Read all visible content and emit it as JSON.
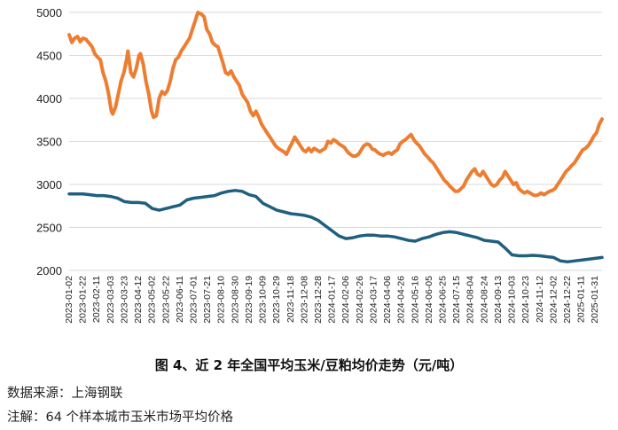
{
  "caption": "图 4、近 2 年全国平均玉米/豆粕均价走势（元/吨）",
  "source": "数据来源：上海钢联",
  "note": "注解：64 个样本城市玉米市场平均价格",
  "chart_data": {
    "type": "line",
    "title": "图 4、近 2 年全国平均玉米/豆粕均价走势（元/吨）",
    "ylim": [
      2000,
      5000
    ],
    "yticks": [
      2000,
      2500,
      3000,
      3500,
      4000,
      4500,
      5000
    ],
    "grid": true,
    "x_start": "2023-01-02",
    "x_end": "2025-02-10",
    "categories": [
      "2023-01-02",
      "2023-01-22",
      "2023-02-11",
      "2023-03-03",
      "2023-03-23",
      "2023-04-12",
      "2023-05-02",
      "2023-05-22",
      "2023-06-11",
      "2023-07-01",
      "2023-07-21",
      "2023-08-10",
      "2023-08-30",
      "2023-09-19",
      "2023-10-09",
      "2023-10-29",
      "2023-11-18",
      "2023-12-08",
      "2023-12-28",
      "2024-01-17",
      "2024-02-06",
      "2024-02-26",
      "2024-03-17",
      "2024-04-06",
      "2024-04-26",
      "2024-05-16",
      "2024-06-05",
      "2024-06-25",
      "2024-07-15",
      "2024-08-04",
      "2024-08-24",
      "2024-09-13",
      "2024-10-03",
      "2024-10-23",
      "2024-11-12",
      "2024-12-02",
      "2024-12-22",
      "2025-01-11",
      "2025-01-31"
    ],
    "series": [
      {
        "color": "#ed7d31",
        "points": [
          [
            "2023-01-02",
            4740
          ],
          [
            "2023-01-06",
            4650
          ],
          [
            "2023-01-10",
            4700
          ],
          [
            "2023-01-14",
            4720
          ],
          [
            "2023-01-18",
            4660
          ],
          [
            "2023-01-22",
            4700
          ],
          [
            "2023-01-26",
            4690
          ],
          [
            "2023-01-30",
            4650
          ],
          [
            "2023-02-04",
            4600
          ],
          [
            "2023-02-08",
            4520
          ],
          [
            "2023-02-12",
            4480
          ],
          [
            "2023-02-16",
            4450
          ],
          [
            "2023-02-20",
            4300
          ],
          [
            "2023-02-24",
            4200
          ],
          [
            "2023-02-28",
            4050
          ],
          [
            "2023-03-04",
            3850
          ],
          [
            "2023-03-06",
            3820
          ],
          [
            "2023-03-10",
            3900
          ],
          [
            "2023-03-14",
            4050
          ],
          [
            "2023-03-18",
            4200
          ],
          [
            "2023-03-22",
            4300
          ],
          [
            "2023-03-26",
            4450
          ],
          [
            "2023-03-28",
            4550
          ],
          [
            "2023-04-01",
            4300
          ],
          [
            "2023-04-05",
            4250
          ],
          [
            "2023-04-09",
            4350
          ],
          [
            "2023-04-13",
            4500
          ],
          [
            "2023-04-15",
            4520
          ],
          [
            "2023-04-19",
            4400
          ],
          [
            "2023-04-23",
            4200
          ],
          [
            "2023-04-27",
            4050
          ],
          [
            "2023-05-01",
            3850
          ],
          [
            "2023-05-04",
            3780
          ],
          [
            "2023-05-08",
            3800
          ],
          [
            "2023-05-12",
            4000
          ],
          [
            "2023-05-16",
            4080
          ],
          [
            "2023-05-20",
            4050
          ],
          [
            "2023-05-24",
            4090
          ],
          [
            "2023-05-28",
            4200
          ],
          [
            "2023-06-01",
            4350
          ],
          [
            "2023-06-05",
            4450
          ],
          [
            "2023-06-09",
            4480
          ],
          [
            "2023-06-13",
            4550
          ],
          [
            "2023-06-17",
            4600
          ],
          [
            "2023-06-21",
            4650
          ],
          [
            "2023-06-25",
            4700
          ],
          [
            "2023-06-29",
            4800
          ],
          [
            "2023-07-03",
            4900
          ],
          [
            "2023-07-07",
            5000
          ],
          [
            "2023-07-12",
            4980
          ],
          [
            "2023-07-16",
            4950
          ],
          [
            "2023-07-20",
            4800
          ],
          [
            "2023-07-24",
            4750
          ],
          [
            "2023-07-28",
            4650
          ],
          [
            "2023-08-01",
            4620
          ],
          [
            "2023-08-05",
            4600
          ],
          [
            "2023-08-12",
            4420
          ],
          [
            "2023-08-16",
            4300
          ],
          [
            "2023-08-20",
            4280
          ],
          [
            "2023-08-24",
            4320
          ],
          [
            "2023-08-28",
            4250
          ],
          [
            "2023-09-01",
            4200
          ],
          [
            "2023-09-05",
            4150
          ],
          [
            "2023-09-09",
            4050
          ],
          [
            "2023-09-13",
            4000
          ],
          [
            "2023-09-17",
            3950
          ],
          [
            "2023-09-21",
            3850
          ],
          [
            "2023-09-25",
            3800
          ],
          [
            "2023-09-29",
            3850
          ],
          [
            "2023-10-03",
            3780
          ],
          [
            "2023-10-07",
            3700
          ],
          [
            "2023-10-11",
            3650
          ],
          [
            "2023-10-15",
            3600
          ],
          [
            "2023-10-19",
            3550
          ],
          [
            "2023-10-23",
            3500
          ],
          [
            "2023-10-27",
            3450
          ],
          [
            "2023-10-31",
            3420
          ],
          [
            "2023-11-04",
            3400
          ],
          [
            "2023-11-08",
            3380
          ],
          [
            "2023-11-12",
            3350
          ],
          [
            "2023-11-16",
            3420
          ],
          [
            "2023-11-20",
            3480
          ],
          [
            "2023-11-24",
            3550
          ],
          [
            "2023-11-28",
            3500
          ],
          [
            "2023-12-02",
            3450
          ],
          [
            "2023-12-06",
            3400
          ],
          [
            "2023-12-10",
            3380
          ],
          [
            "2023-12-14",
            3420
          ],
          [
            "2023-12-18",
            3380
          ],
          [
            "2023-12-22",
            3420
          ],
          [
            "2023-12-26",
            3400
          ],
          [
            "2023-12-30",
            3380
          ],
          [
            "2024-01-03",
            3400
          ],
          [
            "2024-01-07",
            3420
          ],
          [
            "2024-01-11",
            3500
          ],
          [
            "2024-01-15",
            3480
          ],
          [
            "2024-01-19",
            3520
          ],
          [
            "2024-01-23",
            3500
          ],
          [
            "2024-01-27",
            3470
          ],
          [
            "2024-01-31",
            3450
          ],
          [
            "2024-02-04",
            3430
          ],
          [
            "2024-02-08",
            3380
          ],
          [
            "2024-02-12",
            3350
          ],
          [
            "2024-02-16",
            3330
          ],
          [
            "2024-02-20",
            3330
          ],
          [
            "2024-02-24",
            3350
          ],
          [
            "2024-02-28",
            3400
          ],
          [
            "2024-03-03",
            3450
          ],
          [
            "2024-03-07",
            3470
          ],
          [
            "2024-03-11",
            3460
          ],
          [
            "2024-03-15",
            3410
          ],
          [
            "2024-03-19",
            3400
          ],
          [
            "2024-03-23",
            3370
          ],
          [
            "2024-03-27",
            3350
          ],
          [
            "2024-03-31",
            3340
          ],
          [
            "2024-04-04",
            3360
          ],
          [
            "2024-04-08",
            3370
          ],
          [
            "2024-04-12",
            3350
          ],
          [
            "2024-04-16",
            3380
          ],
          [
            "2024-04-20",
            3400
          ],
          [
            "2024-04-24",
            3470
          ],
          [
            "2024-04-28",
            3500
          ],
          [
            "2024-05-02",
            3520
          ],
          [
            "2024-05-06",
            3550
          ],
          [
            "2024-05-10",
            3580
          ],
          [
            "2024-05-14",
            3520
          ],
          [
            "2024-05-18",
            3480
          ],
          [
            "2024-05-22",
            3450
          ],
          [
            "2024-05-26",
            3400
          ],
          [
            "2024-05-30",
            3350
          ],
          [
            "2024-06-03",
            3320
          ],
          [
            "2024-06-07",
            3280
          ],
          [
            "2024-06-11",
            3250
          ],
          [
            "2024-06-15",
            3200
          ],
          [
            "2024-06-19",
            3150
          ],
          [
            "2024-06-23",
            3100
          ],
          [
            "2024-06-27",
            3050
          ],
          [
            "2024-07-01",
            3020
          ],
          [
            "2024-07-05",
            2980
          ],
          [
            "2024-07-09",
            2950
          ],
          [
            "2024-07-13",
            2920
          ],
          [
            "2024-07-17",
            2920
          ],
          [
            "2024-07-21",
            2950
          ],
          [
            "2024-07-25",
            2980
          ],
          [
            "2024-07-29",
            3050
          ],
          [
            "2024-08-02",
            3100
          ],
          [
            "2024-08-06",
            3150
          ],
          [
            "2024-08-10",
            3180
          ],
          [
            "2024-08-14",
            3120
          ],
          [
            "2024-08-18",
            3100
          ],
          [
            "2024-08-22",
            3150
          ],
          [
            "2024-08-26",
            3100
          ],
          [
            "2024-08-30",
            3050
          ],
          [
            "2024-09-03",
            3000
          ],
          [
            "2024-09-07",
            2980
          ],
          [
            "2024-09-11",
            3000
          ],
          [
            "2024-09-15",
            3050
          ],
          [
            "2024-09-19",
            3080
          ],
          [
            "2024-09-23",
            3150
          ],
          [
            "2024-09-27",
            3100
          ],
          [
            "2024-10-01",
            3050
          ],
          [
            "2024-10-05",
            3000
          ],
          [
            "2024-10-09",
            3020
          ],
          [
            "2024-10-13",
            2950
          ],
          [
            "2024-10-17",
            2920
          ],
          [
            "2024-10-21",
            2900
          ],
          [
            "2024-10-25",
            2920
          ],
          [
            "2024-10-29",
            2900
          ],
          [
            "2024-11-02",
            2880
          ],
          [
            "2024-11-06",
            2870
          ],
          [
            "2024-11-10",
            2880
          ],
          [
            "2024-11-14",
            2900
          ],
          [
            "2024-11-18",
            2880
          ],
          [
            "2024-11-22",
            2900
          ],
          [
            "2024-11-26",
            2920
          ],
          [
            "2024-11-30",
            2930
          ],
          [
            "2024-12-04",
            2950
          ],
          [
            "2024-12-08",
            3000
          ],
          [
            "2024-12-12",
            3050
          ],
          [
            "2024-12-16",
            3100
          ],
          [
            "2024-12-20",
            3150
          ],
          [
            "2024-12-24",
            3180
          ],
          [
            "2024-12-28",
            3220
          ],
          [
            "2025-01-01",
            3250
          ],
          [
            "2025-01-05",
            3300
          ],
          [
            "2025-01-09",
            3350
          ],
          [
            "2025-01-13",
            3400
          ],
          [
            "2025-01-17",
            3420
          ],
          [
            "2025-01-21",
            3450
          ],
          [
            "2025-01-25",
            3500
          ],
          [
            "2025-01-29",
            3560
          ],
          [
            "2025-02-02",
            3600
          ],
          [
            "2025-02-06",
            3700
          ],
          [
            "2025-02-10",
            3760
          ]
        ]
      },
      {
        "color": "#1f5f7f",
        "points": [
          [
            "2023-01-02",
            2890
          ],
          [
            "2023-01-10",
            2890
          ],
          [
            "2023-01-22",
            2890
          ],
          [
            "2023-02-01",
            2880
          ],
          [
            "2023-02-11",
            2870
          ],
          [
            "2023-02-21",
            2870
          ],
          [
            "2023-03-03",
            2860
          ],
          [
            "2023-03-13",
            2840
          ],
          [
            "2023-03-23",
            2800
          ],
          [
            "2023-04-02",
            2790
          ],
          [
            "2023-04-12",
            2790
          ],
          [
            "2023-04-22",
            2780
          ],
          [
            "2023-05-02",
            2720
          ],
          [
            "2023-05-12",
            2700
          ],
          [
            "2023-05-22",
            2720
          ],
          [
            "2023-06-01",
            2740
          ],
          [
            "2023-06-11",
            2760
          ],
          [
            "2023-06-21",
            2820
          ],
          [
            "2023-07-01",
            2840
          ],
          [
            "2023-07-11",
            2850
          ],
          [
            "2023-07-21",
            2860
          ],
          [
            "2023-07-31",
            2870
          ],
          [
            "2023-08-10",
            2900
          ],
          [
            "2023-08-20",
            2920
          ],
          [
            "2023-08-30",
            2930
          ],
          [
            "2023-09-09",
            2920
          ],
          [
            "2023-09-19",
            2880
          ],
          [
            "2023-09-29",
            2860
          ],
          [
            "2023-10-09",
            2780
          ],
          [
            "2023-10-19",
            2740
          ],
          [
            "2023-10-29",
            2700
          ],
          [
            "2023-11-08",
            2680
          ],
          [
            "2023-11-18",
            2660
          ],
          [
            "2023-11-28",
            2650
          ],
          [
            "2023-12-08",
            2640
          ],
          [
            "2023-12-18",
            2620
          ],
          [
            "2023-12-28",
            2580
          ],
          [
            "2024-01-07",
            2520
          ],
          [
            "2024-01-17",
            2460
          ],
          [
            "2024-01-27",
            2400
          ],
          [
            "2024-02-06",
            2370
          ],
          [
            "2024-02-16",
            2380
          ],
          [
            "2024-02-26",
            2400
          ],
          [
            "2024-03-07",
            2410
          ],
          [
            "2024-03-17",
            2410
          ],
          [
            "2024-03-27",
            2400
          ],
          [
            "2024-04-06",
            2400
          ],
          [
            "2024-04-16",
            2390
          ],
          [
            "2024-04-26",
            2370
          ],
          [
            "2024-05-06",
            2350
          ],
          [
            "2024-05-16",
            2340
          ],
          [
            "2024-05-26",
            2370
          ],
          [
            "2024-06-05",
            2390
          ],
          [
            "2024-06-15",
            2420
          ],
          [
            "2024-06-25",
            2440
          ],
          [
            "2024-07-05",
            2450
          ],
          [
            "2024-07-15",
            2440
          ],
          [
            "2024-07-25",
            2420
          ],
          [
            "2024-08-04",
            2400
          ],
          [
            "2024-08-14",
            2380
          ],
          [
            "2024-08-24",
            2350
          ],
          [
            "2024-09-03",
            2340
          ],
          [
            "2024-09-13",
            2330
          ],
          [
            "2024-09-23",
            2260
          ],
          [
            "2024-10-03",
            2180
          ],
          [
            "2024-10-13",
            2170
          ],
          [
            "2024-10-23",
            2170
          ],
          [
            "2024-11-02",
            2175
          ],
          [
            "2024-11-12",
            2170
          ],
          [
            "2024-11-22",
            2160
          ],
          [
            "2024-12-02",
            2150
          ],
          [
            "2024-12-12",
            2110
          ],
          [
            "2024-12-22",
            2100
          ],
          [
            "2025-01-01",
            2110
          ],
          [
            "2025-01-11",
            2120
          ],
          [
            "2025-01-21",
            2130
          ],
          [
            "2025-01-31",
            2140
          ],
          [
            "2025-02-10",
            2150
          ]
        ]
      }
    ]
  }
}
